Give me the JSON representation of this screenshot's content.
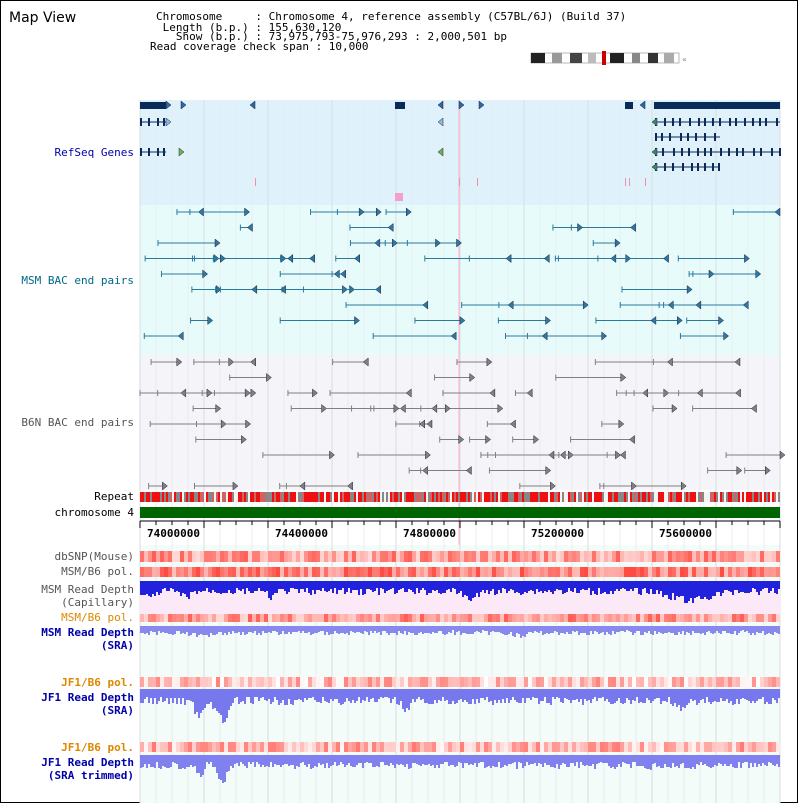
{
  "header": {
    "title": "Map View",
    "chromosome": "Chromosome     : Chromosome 4, reference assembly (C57BL/6J) (Build 37)",
    "length": " Length (b.p.) : 155,630,120",
    "show": "   Show (b.p.) : 73,975,793-75,976,293 : 2,000,501 bp",
    "coverage": "Read coverage check span : 10,000"
  },
  "tracks": {
    "refseq": "RefSeq Genes",
    "msm_bac": "MSM BAC end pairs",
    "b6n_bac": "B6N BAC end pairs",
    "repeat": "Repeat",
    "chromosome": "chromosome 4",
    "dbsnp": "dbSNP(Mouse)",
    "msm_b6_pol": "MSM/B6 pol.",
    "msm_depth_cap_1": "MSM Read Depth",
    "msm_depth_cap_2": "(Capillary)",
    "msm_b6_pol_2": "MSM/B6 pol.",
    "msm_depth_sra_1": "MSM Read Depth",
    "msm_depth_sra_2": "(SRA)",
    "jf1_b6_pol": "JF1/B6 pol.",
    "jf1_depth_sra_1": "JF1 Read Depth",
    "jf1_depth_sra_2": "(SRA)",
    "jf1_b6_pol_2": "JF1/B6 pol.",
    "jf1_depth_trim_1": "JF1 Read Depth",
    "jf1_depth_trim_2": "(SRA trimmed)"
  },
  "axis": {
    "ticks": [
      "74000000",
      "74400000",
      "74800000",
      "75200000",
      "75600000"
    ]
  },
  "colors": {
    "refseq_label": "#0000aa",
    "msm_label": "#006688",
    "b6n_label": "#555555",
    "pol_label": "#dd8800",
    "depth_label": "#0000aa",
    "jf1_pol_label": "#dd8800",
    "refseq_bg": "#dff1fb",
    "msm_bg": "#e8fbfb",
    "b6n_bg": "#f5f5f9",
    "gene": "#0a2a5a",
    "msm_pair": "#2a7aa0",
    "b6n_pair": "#808080",
    "chromosome": "#006400",
    "depth_blue": "#2222dd",
    "depth_light": "#7777ee"
  }
}
